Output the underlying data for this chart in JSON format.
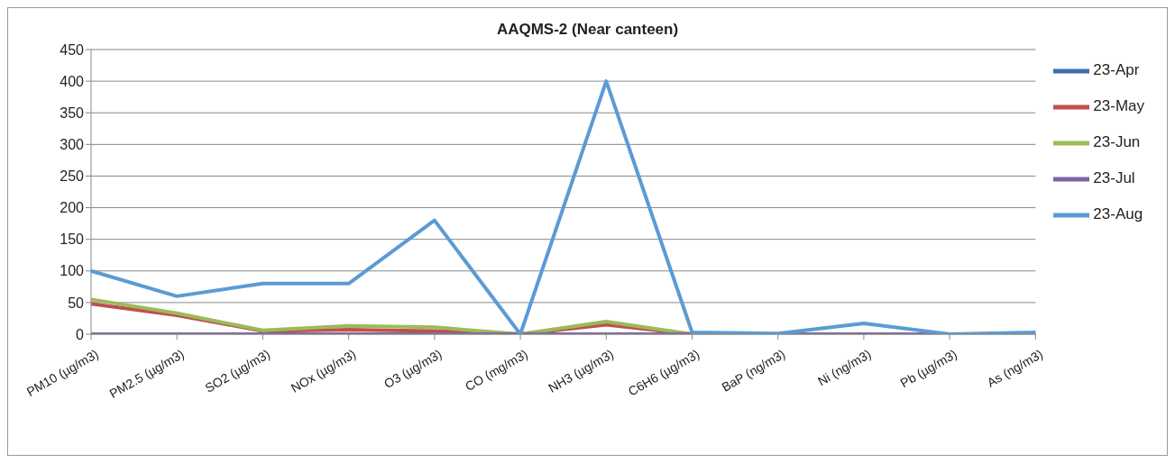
{
  "chart_data": {
    "type": "line",
    "title": "AAQMS-2 (Near canteen)",
    "categories": [
      "PM10  (µg/m3)",
      "PM2.5  (µg/m3)",
      "SO2  (µg/m3)",
      "NOx (µg/m3)",
      "O3  (µg/m3)",
      "CO (mg/m3)",
      "NH3  (µg/m3)",
      "C6H6  (µg/m3)",
      "BaP (ng/m3)",
      "Ni (ng/m3)",
      "Pb (µg/m3)",
      "As (ng/m3)"
    ],
    "series": [
      {
        "name": "23-Apr",
        "color": "#3a6fb0",
        "values": [
          null,
          null,
          null,
          null,
          null,
          null,
          null,
          null,
          null,
          null,
          null,
          null
        ]
      },
      {
        "name": "23-May",
        "color": "#c0504d",
        "values": [
          48,
          30,
          5,
          7,
          5,
          0,
          15,
          0,
          0,
          null,
          null,
          null
        ]
      },
      {
        "name": "23-Jun",
        "color": "#9bbb59",
        "values": [
          55,
          33,
          6,
          13,
          11,
          0,
          20,
          0,
          0,
          null,
          null,
          null
        ]
      },
      {
        "name": "23-Jul",
        "color": "#8064a2",
        "values": [
          0,
          0,
          0,
          0,
          0,
          0,
          0,
          0,
          0,
          0,
          0,
          0
        ]
      },
      {
        "name": "23-Aug",
        "color": "#5b9bd5",
        "values": [
          100,
          60,
          80,
          80,
          180,
          0,
          400,
          3,
          1,
          17,
          0,
          3
        ]
      }
    ],
    "ylim": [
      0,
      450
    ],
    "yticks": [
      0,
      50,
      100,
      150,
      200,
      250,
      300,
      350,
      400,
      450
    ],
    "grid": "y",
    "legend": "right",
    "marker": "none",
    "line_style": "solid"
  }
}
